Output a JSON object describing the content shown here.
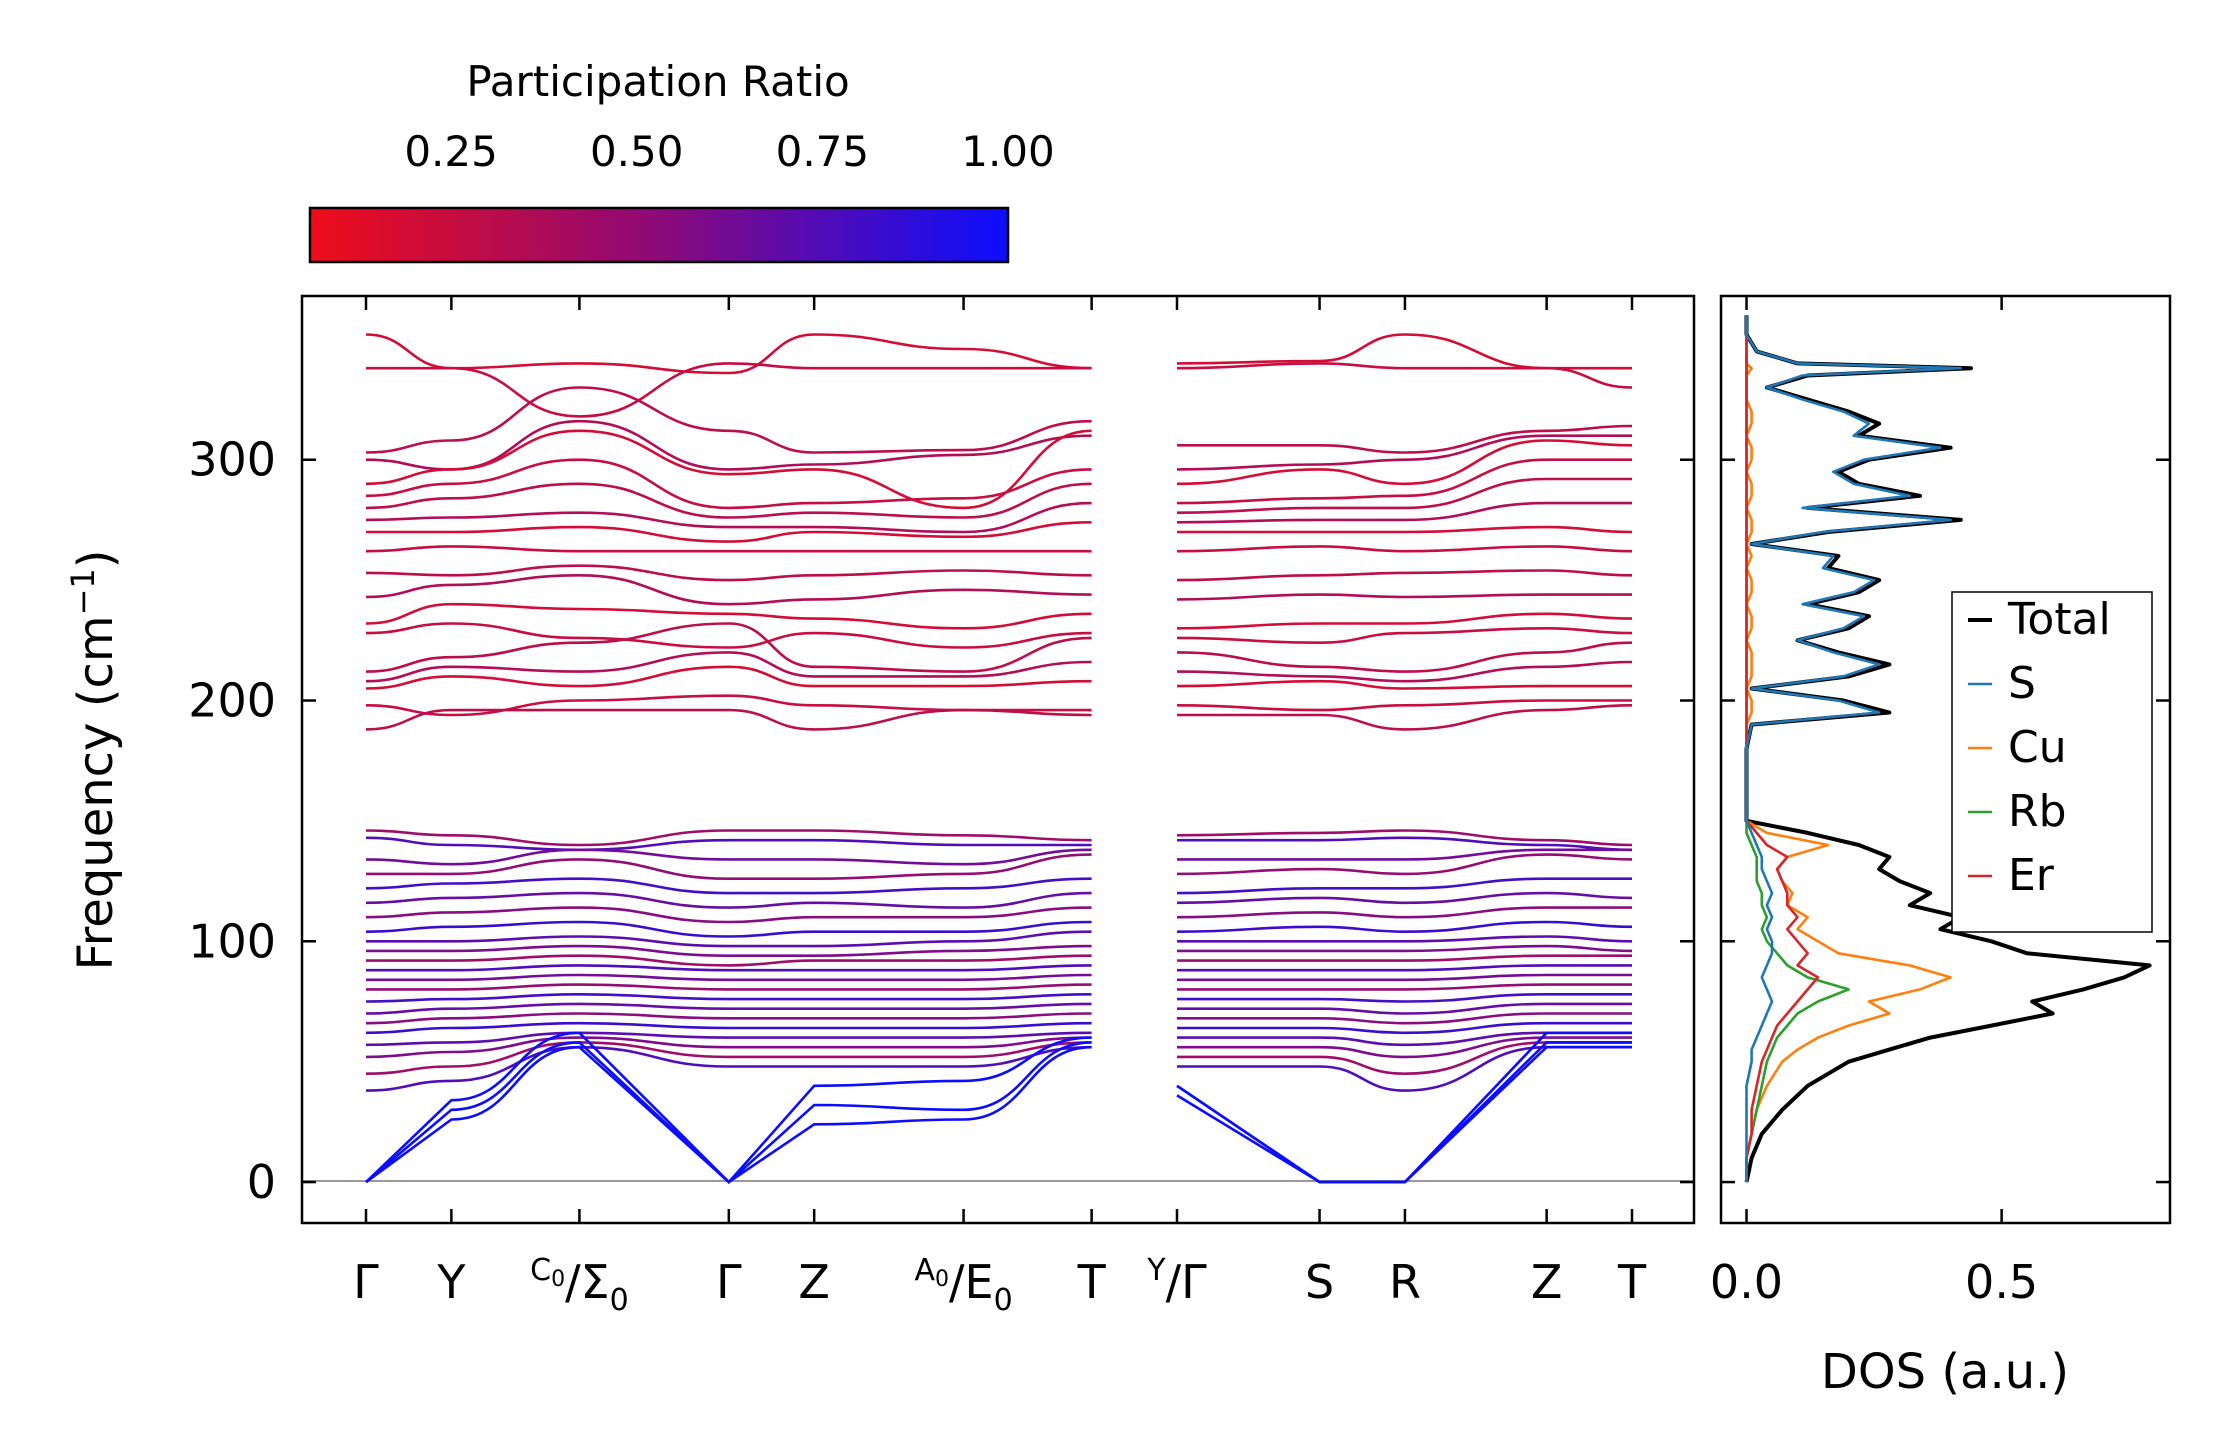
{
  "colors": {
    "low_pr": "#ee0d1a",
    "high_pr": "#0c0dfe",
    "dos_total": "#000000",
    "dos_S": "#1f77b4",
    "dos_Cu": "#ff7f0e",
    "dos_Rb": "#2ca02c",
    "dos_Er": "#d62728"
  },
  "colorbar": {
    "title": "Participation Ratio",
    "ticks": [
      {
        "value": 0.25,
        "label": "0.25"
      },
      {
        "value": 0.5,
        "label": "0.50"
      },
      {
        "value": 0.75,
        "label": "0.75"
      },
      {
        "value": 1.0,
        "label": "1.00"
      }
    ],
    "range": [
      0.06,
      1.0
    ]
  },
  "chart_data": [
    {
      "type": "line",
      "name": "phonon-band-structure",
      "title": "",
      "xlabel": "",
      "ylabel": "Frequency (cm",
      "ylabel_sup": "−1",
      "ylabel_end": ")",
      "ylim": [
        -17,
        368
      ],
      "yticks": [
        0,
        100,
        200,
        300
      ],
      "path_positions": [
        0,
        1,
        2.5,
        4.25,
        5.25,
        7.0,
        8.5,
        9.5,
        11.17,
        12.17,
        13.83,
        14.83
      ],
      "path_labels": [
        {
          "pos": 0,
          "label": "Γ"
        },
        {
          "pos": 1,
          "label": "Y"
        },
        {
          "pos": 2.5,
          "sup": "C",
          "sup_sub": "0",
          "main": "/Σ",
          "main_sub": "0"
        },
        {
          "pos": 4.25,
          "label": "Γ"
        },
        {
          "pos": 5.25,
          "label": "Z"
        },
        {
          "pos": 7.0,
          "sup": "A",
          "sup_sub": "0",
          "main": "/E",
          "main_sub": "0"
        },
        {
          "pos": 8.5,
          "label": "T"
        },
        {
          "pos": 9.5,
          "sup": "Y",
          "sup_sub": "",
          "main": "/Γ",
          "main_sub": ""
        },
        {
          "pos": 11.17,
          "label": "S"
        },
        {
          "pos": 12.17,
          "label": "R"
        },
        {
          "pos": 13.83,
          "label": "Z"
        },
        {
          "pos": 14.83,
          "label": "T"
        }
      ],
      "segment_break_at": 9.5,
      "branches_high": [
        [
          352,
          338,
          340,
          336,
          352,
          346,
          338,
          340,
          341,
          352,
          338,
          338,
          338,
          341
        ],
        [
          338,
          338,
          318,
          340,
          338,
          338,
          338,
          338,
          340,
          338,
          338,
          330,
          330,
          341
        ],
        [
          303,
          308,
          330,
          312,
          303,
          304,
          316,
          306,
          306,
          303,
          312,
          314,
          312,
          306
        ],
        [
          300,
          296,
          316,
          296,
          298,
          302,
          310,
          296,
          298,
          300,
          310,
          310,
          310,
          304
        ],
        [
          290,
          296,
          312,
          294,
          296,
          280,
          312,
          290,
          296,
          290,
          308,
          306,
          306,
          296
        ],
        [
          285,
          290,
          300,
          280,
          282,
          284,
          296,
          282,
          284,
          285,
          300,
          300,
          298,
          286
        ],
        [
          280,
          284,
          290,
          276,
          278,
          276,
          290,
          278,
          280,
          280,
          292,
          292,
          290,
          282
        ],
        [
          275,
          276,
          278,
          272,
          272,
          270,
          282,
          274,
          275,
          275,
          282,
          282,
          282,
          276
        ],
        [
          270,
          270,
          272,
          266,
          270,
          268,
          274,
          270,
          270,
          270,
          272,
          270,
          270,
          270
        ],
        [
          262,
          264,
          262,
          262,
          262,
          262,
          262,
          262,
          264,
          262,
          264,
          262,
          262,
          264
        ],
        [
          253,
          252,
          256,
          250,
          252,
          254,
          252,
          250,
          252,
          253,
          254,
          252,
          252,
          252
        ],
        [
          243,
          248,
          252,
          240,
          242,
          246,
          244,
          242,
          244,
          243,
          244,
          244,
          244,
          244
        ],
        [
          232,
          240,
          238,
          236,
          234,
          230,
          236,
          230,
          232,
          232,
          236,
          234,
          234,
          232
        ],
        [
          228,
          232,
          226,
          222,
          228,
          222,
          228,
          226,
          224,
          228,
          230,
          228,
          228,
          226
        ],
        [
          212,
          218,
          224,
          232,
          214,
          212,
          226,
          220,
          214,
          212,
          220,
          224,
          220,
          214
        ],
        [
          208,
          214,
          212,
          220,
          210,
          210,
          216,
          212,
          210,
          208,
          214,
          216,
          212,
          218
        ],
        [
          205,
          210,
          206,
          214,
          206,
          206,
          208,
          206,
          208,
          205,
          206,
          206,
          208,
          212
        ],
        [
          198,
          194,
          200,
          202,
          198,
          196,
          196,
          198,
          196,
          198,
          200,
          200,
          200,
          194
        ],
        [
          188,
          196,
          196,
          196,
          188,
          196,
          194,
          194,
          194,
          188,
          196,
          198,
          198,
          194
        ]
      ],
      "branches_low": [
        [
          146,
          144,
          140,
          146,
          146,
          144,
          142,
          144,
          145,
          146,
          142,
          140,
          144,
          144
        ],
        [
          143,
          140,
          138,
          142,
          142,
          140,
          140,
          142,
          142,
          143,
          140,
          138,
          142,
          142
        ],
        [
          134,
          132,
          138,
          134,
          134,
          132,
          138,
          134,
          134,
          134,
          138,
          138,
          132,
          132
        ],
        [
          128,
          128,
          134,
          126,
          126,
          128,
          136,
          128,
          130,
          128,
          136,
          134,
          126,
          126
        ],
        [
          122,
          124,
          126,
          120,
          120,
          122,
          126,
          120,
          122,
          122,
          126,
          126,
          122,
          124
        ],
        [
          116,
          118,
          120,
          114,
          116,
          114,
          120,
          116,
          118,
          116,
          120,
          118,
          116,
          114
        ],
        [
          110,
          112,
          114,
          108,
          110,
          110,
          114,
          110,
          112,
          110,
          114,
          114,
          110,
          108
        ],
        [
          104,
          106,
          108,
          102,
          104,
          104,
          108,
          104,
          106,
          104,
          108,
          106,
          104,
          102
        ],
        [
          100,
          100,
          102,
          98,
          98,
          100,
          104,
          100,
          100,
          100,
          102,
          100,
          98,
          100
        ],
        [
          96,
          96,
          98,
          94,
          94,
          96,
          98,
          96,
          96,
          96,
          98,
          96,
          96,
          96
        ],
        [
          92,
          92,
          94,
          90,
          92,
          92,
          94,
          92,
          92,
          92,
          94,
          94,
          92,
          92
        ],
        [
          88,
          88,
          90,
          88,
          88,
          88,
          90,
          88,
          88,
          88,
          90,
          90,
          88,
          88
        ],
        [
          84,
          84,
          86,
          84,
          84,
          84,
          86,
          84,
          84,
          84,
          86,
          86,
          84,
          84
        ],
        [
          80,
          80,
          82,
          80,
          80,
          80,
          82,
          80,
          80,
          80,
          82,
          82,
          80,
          80
        ],
        [
          75,
          76,
          78,
          76,
          76,
          76,
          78,
          76,
          76,
          75,
          78,
          78,
          76,
          76
        ],
        [
          70,
          72,
          74,
          72,
          72,
          72,
          74,
          72,
          72,
          70,
          74,
          74,
          72,
          72
        ],
        [
          66,
          68,
          70,
          68,
          68,
          68,
          70,
          68,
          68,
          66,
          70,
          70,
          68,
          68
        ],
        [
          62,
          64,
          66,
          64,
          64,
          64,
          66,
          64,
          64,
          62,
          66,
          66,
          64,
          64
        ],
        [
          57,
          58,
          62,
          60,
          60,
          60,
          62,
          60,
          60,
          57,
          62,
          62,
          60,
          60
        ],
        [
          52,
          54,
          60,
          56,
          56,
          56,
          60,
          56,
          56,
          52,
          60,
          60,
          56,
          56
        ],
        [
          45,
          48,
          58,
          52,
          52,
          52,
          58,
          52,
          52,
          45,
          58,
          58,
          52,
          52
        ],
        [
          38,
          42,
          56,
          48,
          48,
          48,
          56,
          48,
          48,
          38,
          56,
          56,
          48,
          48
        ],
        [
          0,
          34,
          62,
          0,
          40,
          42,
          60,
          40,
          0,
          0,
          62,
          62,
          40,
          44
        ],
        [
          0,
          30,
          58,
          0,
          32,
          30,
          58,
          36,
          0,
          0,
          58,
          58,
          24,
          44
        ],
        [
          0,
          26,
          56,
          0,
          24,
          26,
          56,
          40,
          0,
          0,
          56,
          56,
          22,
          42
        ]
      ],
      "acoustic_note": "three acoustic branches reach 0 cm^-1 at Γ"
    },
    {
      "type": "line",
      "name": "phonon-dos",
      "xlabel": "DOS (a.u.)",
      "ylabel": "",
      "xlim": [
        -0.05,
        0.83
      ],
      "ylim": [
        -17,
        368
      ],
      "xticks": [
        {
          "value": 0.0,
          "label": "0.0"
        },
        {
          "value": 0.5,
          "label": "0.5"
        }
      ],
      "legend": {
        "position": "center-right",
        "entries": [
          {
            "key": "total",
            "label": "Total"
          },
          {
            "key": "S",
            "label": "S"
          },
          {
            "key": "Cu",
            "label": "Cu"
          },
          {
            "key": "Rb",
            "label": "Rb"
          },
          {
            "key": "Er",
            "label": "Er"
          }
        ]
      },
      "freq": [
        0,
        10,
        20,
        30,
        40,
        50,
        55,
        60,
        65,
        70,
        75,
        80,
        85,
        90,
        95,
        100,
        105,
        110,
        115,
        120,
        125,
        130,
        135,
        140,
        145,
        150,
        160,
        180,
        190,
        195,
        200,
        205,
        210,
        215,
        220,
        225,
        230,
        235,
        240,
        245,
        250,
        255,
        260,
        265,
        270,
        275,
        280,
        285,
        290,
        295,
        300,
        305,
        310,
        315,
        320,
        325,
        330,
        335,
        338,
        340,
        345,
        352,
        360
      ],
      "series": [
        {
          "key": "total",
          "name": "Total",
          "values": [
            0.0,
            0.01,
            0.03,
            0.07,
            0.12,
            0.2,
            0.28,
            0.36,
            0.48,
            0.6,
            0.56,
            0.66,
            0.74,
            0.79,
            0.55,
            0.48,
            0.38,
            0.42,
            0.32,
            0.36,
            0.3,
            0.26,
            0.28,
            0.22,
            0.12,
            0.0,
            0.0,
            0.0,
            0.01,
            0.28,
            0.19,
            0.01,
            0.2,
            0.28,
            0.18,
            0.1,
            0.2,
            0.24,
            0.12,
            0.22,
            0.26,
            0.16,
            0.18,
            0.01,
            0.16,
            0.42,
            0.12,
            0.34,
            0.22,
            0.18,
            0.24,
            0.4,
            0.22,
            0.26,
            0.2,
            0.12,
            0.04,
            0.12,
            0.44,
            0.1,
            0.02,
            0.0,
            0.0
          ]
        },
        {
          "key": "S",
          "name": "S",
          "values": [
            0.0,
            0.0,
            0.0,
            0.0,
            0.0,
            0.01,
            0.01,
            0.02,
            0.03,
            0.04,
            0.05,
            0.04,
            0.03,
            0.04,
            0.05,
            0.05,
            0.04,
            0.05,
            0.04,
            0.05,
            0.04,
            0.03,
            0.03,
            0.02,
            0.01,
            0.0,
            0.0,
            0.0,
            0.01,
            0.26,
            0.18,
            0.01,
            0.19,
            0.26,
            0.17,
            0.1,
            0.19,
            0.23,
            0.11,
            0.21,
            0.25,
            0.15,
            0.17,
            0.01,
            0.15,
            0.4,
            0.11,
            0.32,
            0.21,
            0.17,
            0.23,
            0.38,
            0.21,
            0.24,
            0.19,
            0.11,
            0.04,
            0.11,
            0.42,
            0.1,
            0.02,
            0.0,
            0.0
          ]
        },
        {
          "key": "Cu",
          "name": "Cu",
          "values": [
            0.0,
            0.0,
            0.01,
            0.02,
            0.04,
            0.07,
            0.1,
            0.14,
            0.2,
            0.28,
            0.24,
            0.34,
            0.4,
            0.32,
            0.18,
            0.14,
            0.1,
            0.12,
            0.08,
            0.09,
            0.07,
            0.06,
            0.08,
            0.16,
            0.04,
            0.0,
            0.0,
            0.0,
            0.0,
            0.01,
            0.01,
            0.0,
            0.01,
            0.01,
            0.01,
            0.0,
            0.01,
            0.01,
            0.0,
            0.01,
            0.01,
            0.0,
            0.01,
            0.0,
            0.01,
            0.01,
            0.0,
            0.01,
            0.01,
            0.0,
            0.01,
            0.01,
            0.0,
            0.01,
            0.01,
            0.0,
            0.0,
            0.0,
            0.01,
            0.0,
            0.0,
            0.0,
            0.0
          ]
        },
        {
          "key": "Rb",
          "name": "Rb",
          "values": [
            0.0,
            0.0,
            0.01,
            0.02,
            0.03,
            0.04,
            0.05,
            0.06,
            0.08,
            0.1,
            0.14,
            0.2,
            0.12,
            0.08,
            0.06,
            0.04,
            0.03,
            0.04,
            0.03,
            0.03,
            0.02,
            0.02,
            0.02,
            0.01,
            0.0,
            0.0,
            0.0,
            0.0,
            0.0,
            0.0,
            0.0,
            0.0,
            0.0,
            0.0,
            0.0,
            0.0,
            0.0,
            0.0,
            0.0,
            0.0,
            0.0,
            0.0,
            0.0,
            0.0,
            0.0,
            0.0,
            0.0,
            0.0,
            0.0,
            0.0,
            0.0,
            0.0,
            0.0,
            0.0,
            0.0,
            0.0,
            0.0,
            0.0,
            0.0,
            0.0,
            0.0,
            0.0,
            0.0
          ]
        },
        {
          "key": "Er",
          "name": "Er",
          "values": [
            0.0,
            0.0,
            0.01,
            0.01,
            0.02,
            0.03,
            0.04,
            0.05,
            0.06,
            0.08,
            0.1,
            0.12,
            0.14,
            0.1,
            0.12,
            0.1,
            0.08,
            0.1,
            0.08,
            0.08,
            0.07,
            0.06,
            0.08,
            0.04,
            0.02,
            0.0,
            0.0,
            0.0,
            0.0,
            0.0,
            0.0,
            0.0,
            0.0,
            0.0,
            0.0,
            0.0,
            0.0,
            0.0,
            0.0,
            0.0,
            0.0,
            0.0,
            0.0,
            0.0,
            0.0,
            0.0,
            0.0,
            0.0,
            0.0,
            0.0,
            0.0,
            0.0,
            0.0,
            0.0,
            0.0,
            0.0,
            0.0,
            0.0,
            0.0,
            0.0,
            0.0,
            0.0,
            0.0
          ]
        }
      ]
    }
  ]
}
